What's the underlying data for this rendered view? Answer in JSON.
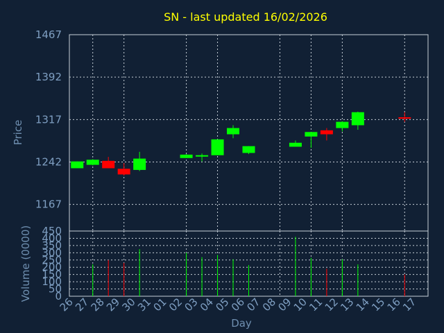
{
  "chart_data": [
    {
      "type": "candlestick",
      "title": "SN - last updated 16/02/2026",
      "xlabel": "",
      "ylabel": "Price",
      "ylim": [
        1120,
        1467
      ],
      "yticks": [
        1167,
        1242,
        1317,
        1392,
        1467
      ],
      "grid": true,
      "up_color": "#00ff00",
      "down_color": "#ff0000",
      "candles": [
        {
          "x": "26",
          "open": 1231,
          "close": 1243,
          "high": 1243,
          "low": 1231
        },
        {
          "x": "27",
          "open": 1237,
          "close": 1246,
          "high": 1247,
          "low": 1236
        },
        {
          "x": "28",
          "open": 1244,
          "close": 1231,
          "high": 1251,
          "low": 1231
        },
        {
          "x": "29",
          "open": 1230,
          "close": 1220,
          "high": 1240,
          "low": 1218
        },
        {
          "x": "30",
          "open": 1228,
          "close": 1248,
          "high": 1260,
          "low": 1226
        },
        {
          "x": "02",
          "open": 1249,
          "close": 1255,
          "high": 1256,
          "low": 1249
        },
        {
          "x": "03",
          "open": 1252,
          "close": 1254,
          "high": 1257,
          "low": 1243
        },
        {
          "x": "04",
          "open": 1254,
          "close": 1282,
          "high": 1282,
          "low": 1254
        },
        {
          "x": "05",
          "open": 1291,
          "close": 1302,
          "high": 1307,
          "low": 1284
        },
        {
          "x": "06",
          "open": 1258,
          "close": 1270,
          "high": 1270,
          "low": 1256
        },
        {
          "x": "09",
          "open": 1269,
          "close": 1276,
          "high": 1280,
          "low": 1269
        },
        {
          "x": "10",
          "open": 1287,
          "close": 1295,
          "high": 1295,
          "low": 1267
        },
        {
          "x": "11",
          "open": 1298,
          "close": 1291,
          "high": 1302,
          "low": 1280
        },
        {
          "x": "12",
          "open": 1302,
          "close": 1313,
          "high": 1314,
          "low": 1296
        },
        {
          "x": "13",
          "open": 1307,
          "close": 1330,
          "high": 1331,
          "low": 1299
        },
        {
          "x": "16",
          "open": 1321,
          "close": 1319,
          "high": 1330,
          "low": 1313
        }
      ]
    },
    {
      "type": "bar",
      "xlabel": "Day",
      "ylabel": "Volume (0000)",
      "ylim": [
        0,
        450
      ],
      "yticks": [
        0,
        50,
        100,
        150,
        200,
        250,
        300,
        350,
        400,
        450
      ],
      "grid": true,
      "categories": [
        "26",
        "27",
        "28",
        "29",
        "30",
        "31",
        "01",
        "02",
        "03",
        "04",
        "05",
        "06",
        "07",
        "08",
        "09",
        "10",
        "11",
        "12",
        "13",
        "14",
        "15",
        "16",
        "17"
      ],
      "volumes": [
        {
          "x": "26",
          "value": 0,
          "color": "#00ff00"
        },
        {
          "x": "27",
          "value": 220,
          "color": "#00ff00"
        },
        {
          "x": "28",
          "value": 250,
          "color": "#ff0000"
        },
        {
          "x": "29",
          "value": 230,
          "color": "#ff0000"
        },
        {
          "x": "30",
          "value": 325,
          "color": "#00ff00"
        },
        {
          "x": "02",
          "value": 300,
          "color": "#00ff00"
        },
        {
          "x": "03",
          "value": 270,
          "color": "#00ff00"
        },
        {
          "x": "04",
          "value": 285,
          "color": "#00ff00"
        },
        {
          "x": "05",
          "value": 255,
          "color": "#00ff00"
        },
        {
          "x": "06",
          "value": 215,
          "color": "#00ff00"
        },
        {
          "x": "09",
          "value": 410,
          "color": "#00ff00"
        },
        {
          "x": "10",
          "value": 265,
          "color": "#00ff00"
        },
        {
          "x": "11",
          "value": 190,
          "color": "#ff0000"
        },
        {
          "x": "12",
          "value": 255,
          "color": "#00ff00"
        },
        {
          "x": "13",
          "value": 220,
          "color": "#00ff00"
        },
        {
          "x": "16",
          "value": 150,
          "color": "#ff0000"
        }
      ]
    }
  ]
}
